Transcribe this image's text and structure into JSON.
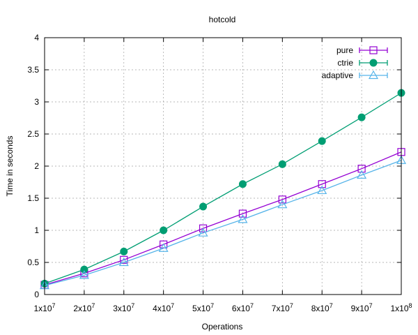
{
  "chart_data": {
    "type": "line",
    "title": "hotcold",
    "xlabel": "Operations",
    "ylabel": "Time in seconds",
    "xlim": [
      10000000,
      100000000
    ],
    "ylim": [
      0,
      4
    ],
    "grid": true,
    "legend_position": "top-right",
    "x": [
      10000000,
      20000000,
      30000000,
      40000000,
      50000000,
      60000000,
      70000000,
      80000000,
      90000000,
      100000000
    ],
    "x_ticks": [
      {
        "base": "1x10",
        "exp": "7"
      },
      {
        "base": "2x10",
        "exp": "7"
      },
      {
        "base": "3x10",
        "exp": "7"
      },
      {
        "base": "4x10",
        "exp": "7"
      },
      {
        "base": "5x10",
        "exp": "7"
      },
      {
        "base": "6x10",
        "exp": "7"
      },
      {
        "base": "7x10",
        "exp": "7"
      },
      {
        "base": "8x10",
        "exp": "7"
      },
      {
        "base": "9x10",
        "exp": "7"
      },
      {
        "base": "1x10",
        "exp": "8"
      }
    ],
    "y_ticks": [
      0,
      0.5,
      1,
      1.5,
      2,
      2.5,
      3,
      3.5,
      4
    ],
    "series": [
      {
        "name": "pure",
        "color": "#9400d3",
        "marker": "open-square",
        "values": [
          0.15,
          0.33,
          0.54,
          0.78,
          1.03,
          1.26,
          1.48,
          1.72,
          1.96,
          2.22
        ]
      },
      {
        "name": "ctrie",
        "color": "#009e73",
        "marker": "filled-circle",
        "values": [
          0.17,
          0.39,
          0.67,
          1.0,
          1.37,
          1.72,
          2.03,
          2.39,
          2.76,
          3.14
        ]
      },
      {
        "name": "adaptive",
        "color": "#56b4e9",
        "marker": "open-triangle",
        "values": [
          0.14,
          0.3,
          0.5,
          0.72,
          0.96,
          1.17,
          1.4,
          1.62,
          1.86,
          2.09
        ]
      }
    ]
  }
}
